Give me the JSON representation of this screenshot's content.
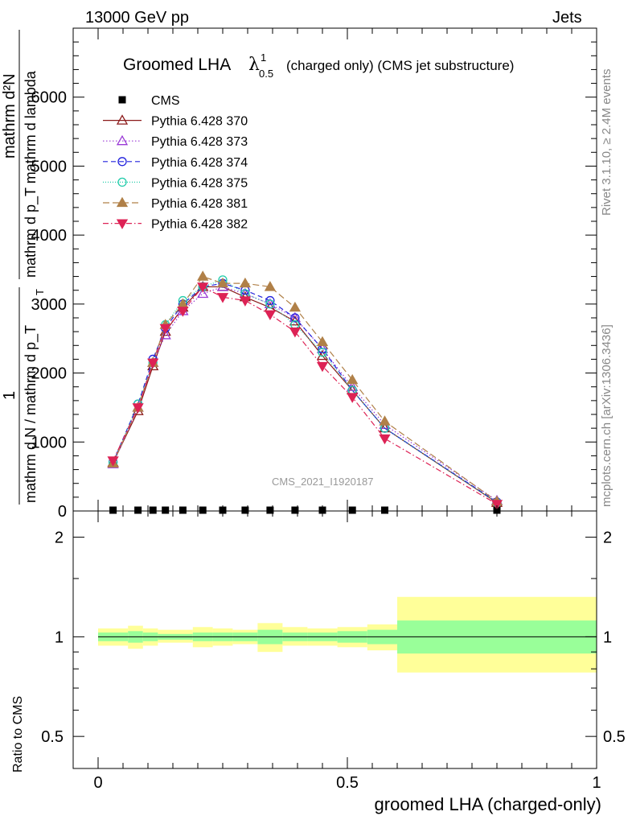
{
  "header": {
    "energy_label": "13000 GeV pp",
    "category_label": "Jets"
  },
  "side_labels": {
    "rivet": "Rivet 3.1.10, ≥ 2.4M events",
    "mcplots": "mcplots.cern.ch [arXiv:1306.3436]"
  },
  "colors": {
    "cms": "#000000",
    "p370": "#8b1a1a",
    "p373": "#9a3ad6",
    "p374": "#2222dd",
    "p375": "#22ccaa",
    "p381": "#b08048",
    "p382": "#dd2255",
    "band_outer": "#ffff99",
    "band_inner": "#99ff99"
  },
  "chart_data": [
    {
      "type": "line",
      "panel": "main",
      "title": "Groomed LHA",
      "title_symbol": "λ",
      "title_sup": "1",
      "title_sub": "0.5",
      "title_suffix": "(charged only) (CMS jet substructure)",
      "watermark": "CMS_2021_I1920187",
      "ylabel_numerator": "mathrm d²N",
      "ylabel_denominator": "mathrm d p_T mathrm d lambda",
      "ylabel_prefix_num": "1",
      "ylabel_prefix_den": "mathrm d N / mathrm d p_T",
      "ylabel_sub": "T",
      "xlim": [
        -0.05,
        1.0
      ],
      "ylim": [
        0,
        7000
      ],
      "y_ticks": [
        0,
        1000,
        2000,
        3000,
        4000,
        5000,
        6000
      ],
      "y_tick_labels": [
        "0",
        "1000",
        "2000",
        "3000",
        "4000",
        "5000",
        "6000"
      ],
      "legend_position": "top-left",
      "x": [
        0.03,
        0.08,
        0.11,
        0.135,
        0.17,
        0.21,
        0.25,
        0.295,
        0.345,
        0.395,
        0.45,
        0.51,
        0.575,
        0.8
      ],
      "series": [
        {
          "name": "CMS",
          "color_key": "cms",
          "marker": "square",
          "dash": "none",
          "values": [
            0,
            0,
            0,
            0,
            0,
            0,
            0,
            0,
            0,
            0,
            0,
            0,
            0,
            0
          ]
        },
        {
          "name": "Pythia 6.428 370",
          "color_key": "p370",
          "marker": "triangle-up-open",
          "dash": "solid",
          "values": [
            700,
            1450,
            2100,
            2600,
            2950,
            3250,
            3250,
            3100,
            2950,
            2750,
            2250,
            1750,
            1200,
            120
          ]
        },
        {
          "name": "Pythia 6.428 373",
          "color_key": "p373",
          "marker": "triangle-up-open",
          "dash": "dot",
          "values": [
            680,
            1500,
            2150,
            2550,
            2900,
            3150,
            3250,
            3150,
            3000,
            2800,
            2350,
            1800,
            1250,
            150
          ]
        },
        {
          "name": "Pythia 6.428 374",
          "color_key": "p374",
          "marker": "circle-open",
          "dash": "dash",
          "values": [
            710,
            1550,
            2200,
            2650,
            3000,
            3250,
            3300,
            3200,
            3050,
            2800,
            2350,
            1750,
            1200,
            130
          ]
        },
        {
          "name": "Pythia 6.428 375",
          "color_key": "p375",
          "marker": "circle-open",
          "dash": "dot-fine",
          "values": [
            700,
            1550,
            2150,
            2700,
            3050,
            3250,
            3350,
            3150,
            3000,
            2700,
            2300,
            1750,
            1200,
            120
          ]
        },
        {
          "name": "Pythia 6.428 381",
          "color_key": "p381",
          "marker": "triangle-up-filled",
          "dash": "dash-long",
          "values": [
            690,
            1500,
            2150,
            2700,
            3000,
            3400,
            3300,
            3300,
            3250,
            2950,
            2450,
            1900,
            1300,
            140
          ]
        },
        {
          "name": "Pythia 6.428 382",
          "color_key": "p382",
          "marker": "triangle-down-filled",
          "dash": "dash-dot",
          "values": [
            730,
            1500,
            2150,
            2650,
            2900,
            3250,
            3100,
            3050,
            2850,
            2600,
            2100,
            1650,
            1050,
            100
          ]
        }
      ]
    },
    {
      "type": "area",
      "panel": "ratio",
      "ylabel": "Ratio to CMS",
      "xlabel": "groomed LHA (charged-only)",
      "xlim": [
        -0.05,
        1.0
      ],
      "ylim": [
        0.4,
        2.4
      ],
      "log_y": true,
      "y_ticks": [
        0.5,
        1,
        2
      ],
      "y_tick_labels": [
        "0.5",
        "1",
        "2"
      ],
      "x_ticks": [
        0,
        0.5,
        1
      ],
      "x_tick_labels": [
        "0",
        "0.5",
        "1"
      ],
      "reference_line": 1,
      "bin_edges": [
        0,
        0.06,
        0.09,
        0.12,
        0.15,
        0.19,
        0.23,
        0.27,
        0.32,
        0.37,
        0.42,
        0.48,
        0.54,
        0.6,
        1.0
      ],
      "outer_band": {
        "low": [
          0.94,
          0.92,
          0.94,
          0.96,
          0.96,
          0.93,
          0.94,
          0.95,
          0.9,
          0.94,
          0.94,
          0.93,
          0.91,
          0.78
        ],
        "high": [
          1.06,
          1.08,
          1.06,
          1.05,
          1.05,
          1.07,
          1.06,
          1.05,
          1.1,
          1.07,
          1.06,
          1.07,
          1.09,
          1.32
        ]
      },
      "inner_band": {
        "low": [
          0.97,
          0.96,
          0.97,
          0.98,
          0.98,
          0.97,
          0.97,
          0.97,
          0.95,
          0.97,
          0.97,
          0.96,
          0.95,
          0.89
        ],
        "high": [
          1.03,
          1.04,
          1.03,
          1.02,
          1.02,
          1.03,
          1.03,
          1.03,
          1.05,
          1.03,
          1.03,
          1.04,
          1.05,
          1.12
        ]
      }
    }
  ]
}
